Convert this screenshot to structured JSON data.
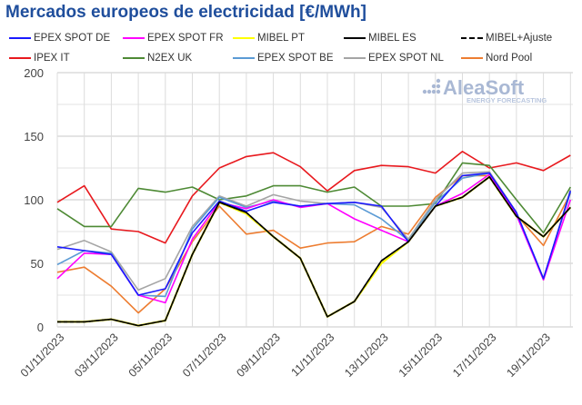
{
  "chart_data": {
    "type": "line",
    "title": "Mercados europeos de electricidad [€/MWh]",
    "watermark": "AleaSoft ENERGY FORECASTING",
    "x": [
      "01/11/2023",
      "02/11/2023",
      "03/11/2023",
      "04/11/2023",
      "05/11/2023",
      "06/11/2023",
      "07/11/2023",
      "08/11/2023",
      "09/11/2023",
      "10/11/2023",
      "11/11/2023",
      "12/11/2023",
      "13/11/2023",
      "14/11/2023",
      "15/11/2023",
      "16/11/2023",
      "17/11/2023",
      "18/11/2023",
      "19/11/2023",
      "20/11/2023"
    ],
    "x_tick_labels": [
      "01/11/2023",
      "03/11/2023",
      "05/11/2023",
      "07/11/2023",
      "09/11/2023",
      "11/11/2023",
      "13/11/2023",
      "15/11/2023",
      "17/11/2023",
      "19/11/2023"
    ],
    "ylim": [
      0,
      200
    ],
    "y_ticks": [
      0,
      50,
      100,
      150,
      200
    ],
    "grid": true,
    "legend_position": "top",
    "series": [
      {
        "name": "EPEX SPOT DE",
        "color": "#1a1aff",
        "dash": false,
        "values": [
          63,
          60,
          57,
          25,
          30,
          74,
          99,
          91,
          98,
          95,
          97,
          98,
          95,
          67,
          95,
          119,
          121,
          90,
          38,
          107
        ]
      },
      {
        "name": "EPEX SPOT FR",
        "color": "#ff00ff",
        "dash": false,
        "values": [
          38,
          58,
          57,
          25,
          19,
          69,
          98,
          93,
          100,
          94,
          97,
          85,
          76,
          67,
          95,
          105,
          120,
          88,
          37,
          100
        ]
      },
      {
        "name": "MIBEL PT",
        "color": "#ffff00",
        "dash": false,
        "values": [
          4,
          4,
          6,
          1,
          5,
          57,
          98,
          89,
          71,
          54,
          8,
          20,
          50,
          67,
          95,
          102,
          118,
          87,
          71,
          94
        ]
      },
      {
        "name": "MIBEL ES",
        "color": "#000000",
        "dash": false,
        "values": [
          4,
          4,
          6,
          1,
          5,
          57,
          98,
          90,
          71,
          54,
          8,
          20,
          52,
          67,
          95,
          102,
          118,
          87,
          71,
          94
        ]
      },
      {
        "name": "MIBEL+Ajuste",
        "color": "#000000",
        "dash": true,
        "values": [
          4,
          4,
          6,
          1,
          5,
          57,
          98,
          90,
          71,
          54,
          8,
          20,
          52,
          67,
          95,
          102,
          118,
          87,
          71,
          94
        ]
      },
      {
        "name": "IPEX IT",
        "color": "#e8191e",
        "dash": false,
        "values": [
          98,
          111,
          77,
          75,
          66,
          103,
          125,
          134,
          137,
          126,
          107,
          123,
          127,
          126,
          121,
          138,
          125,
          129,
          123,
          135
        ]
      },
      {
        "name": "N2EX UK",
        "color": "#4e8a35",
        "dash": false,
        "values": [
          93,
          79,
          79,
          109,
          106,
          110,
          100,
          103,
          111,
          111,
          106,
          110,
          95,
          95,
          97,
          129,
          127,
          100,
          74,
          110
        ]
      },
      {
        "name": "EPEX SPOT BE",
        "color": "#5b9bd5",
        "dash": false,
        "values": [
          49,
          60,
          58,
          25,
          24,
          77,
          102,
          94,
          99,
          95,
          97,
          96,
          85,
          68,
          98,
          117,
          121,
          90,
          38,
          106
        ]
      },
      {
        "name": "EPEX SPOT NL",
        "color": "#a5a5a5",
        "dash": false,
        "values": [
          61,
          68,
          59,
          29,
          38,
          79,
          103,
          95,
          104,
          99,
          97,
          98,
          94,
          69,
          100,
          121,
          122,
          90,
          37,
          108
        ]
      },
      {
        "name": "Nord Pool",
        "color": "#ed7d31",
        "dash": false,
        "values": [
          43,
          47,
          32,
          11,
          30,
          67,
          95,
          73,
          76,
          62,
          66,
          67,
          79,
          73,
          102,
          119,
          119,
          88,
          64,
          105
        ]
      }
    ]
  }
}
